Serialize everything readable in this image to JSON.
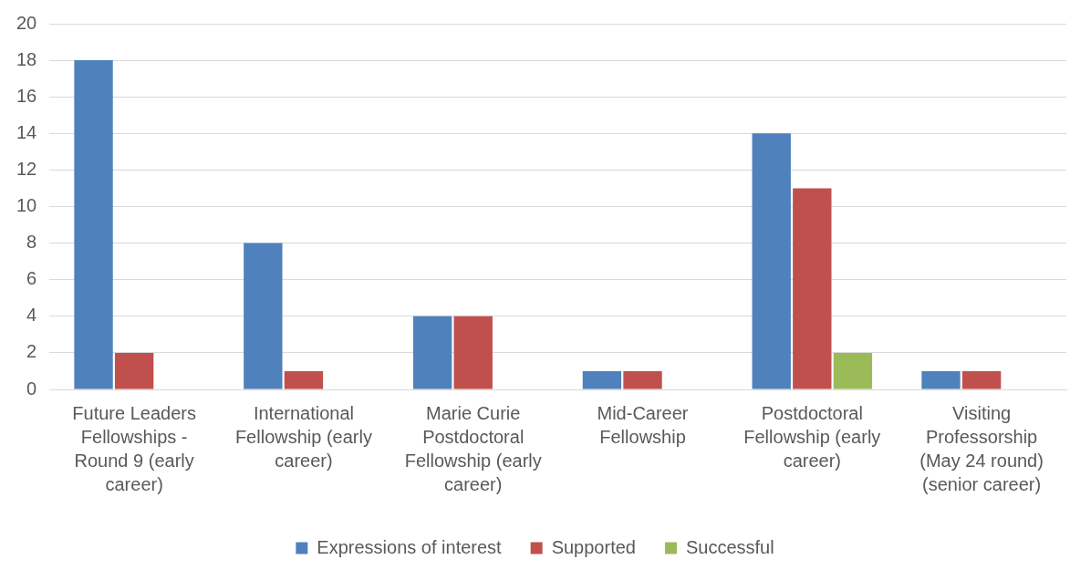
{
  "chart_data": {
    "type": "bar",
    "categories": [
      "Future Leaders Fellowships - Round 9 (early career)",
      "International Fellowship (early career)",
      "Marie Curie Postdoctoral Fellowship (early career)",
      "Mid-Career Fellowship",
      "Postdoctoral Fellowship (early career)",
      "Visiting Professorship (May 24 round) (senior career)"
    ],
    "series": [
      {
        "name": "Expressions of interest",
        "color": "#4f81bd",
        "values": [
          18,
          8,
          4,
          1,
          14,
          1
        ]
      },
      {
        "name": "Supported",
        "color": "#c0504d",
        "values": [
          2,
          1,
          4,
          1,
          11,
          1
        ]
      },
      {
        "name": "Successful",
        "color": "#9bbb59",
        "values": [
          null,
          null,
          null,
          null,
          2,
          null
        ]
      }
    ],
    "ylim": [
      0,
      20
    ],
    "yticks": [
      0,
      2,
      4,
      6,
      8,
      10,
      12,
      14,
      16,
      18,
      20
    ],
    "grid": "y",
    "legend": "bottom"
  }
}
